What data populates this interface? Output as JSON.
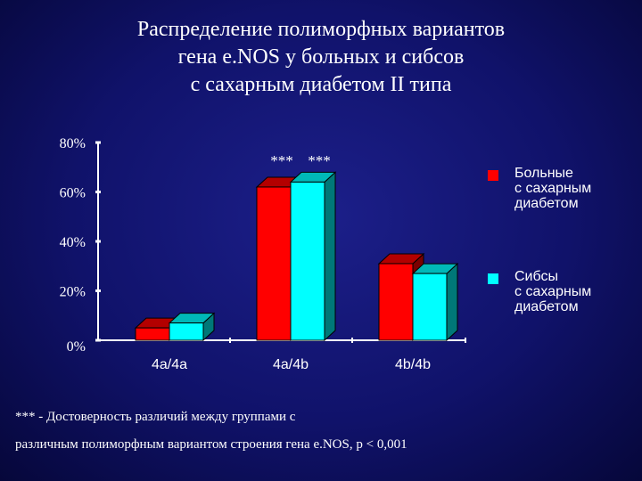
{
  "title_lines": [
    "Распределение полиморфных вариантов",
    "гена e.NOS у больных и сибсов",
    "с сахарным диабетом II типа"
  ],
  "colors": {
    "series_patients": "#ff0000",
    "series_siblings": "#00ffff"
  },
  "chart_data": {
    "type": "bar",
    "categories": [
      "4a/4a",
      "4a/4b",
      "4b/4b"
    ],
    "series": [
      {
        "name": "Больные с сахарным диабетом",
        "values": [
          5,
          62,
          31
        ]
      },
      {
        "name": "Сибсы с сахарным диабетом",
        "values": [
          7,
          64,
          27
        ]
      }
    ],
    "ylim": [
      0,
      80
    ],
    "yticks": [
      "0%",
      "20%",
      "40%",
      "60%",
      "80%"
    ],
    "annotations": [
      "***",
      "***"
    ],
    "legend_position": "right",
    "grid": false
  },
  "legend": [
    {
      "lines": [
        "Больные",
        "с сахарным",
        "диабетом"
      ]
    },
    {
      "lines": [
        "Сибсы",
        "с сахарным",
        "диабетом"
      ]
    }
  ],
  "footnote": {
    "line1": "*** - Достоверность различий между группами с",
    "line2": "различным полиморфным вариантом строения гена e.NOS, p < 0,001"
  }
}
